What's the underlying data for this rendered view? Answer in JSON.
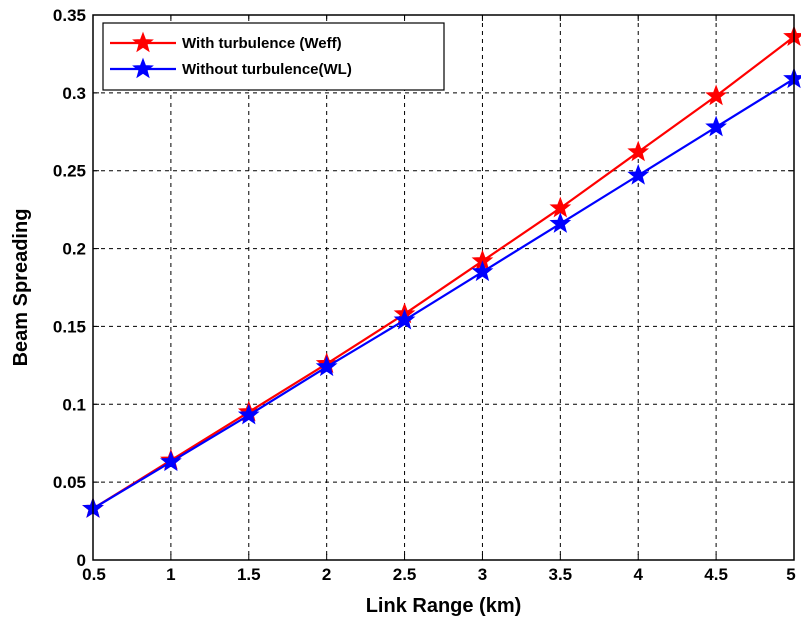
{
  "chart_data": {
    "type": "line",
    "title": "",
    "xlabel": "Link Range (km)",
    "ylabel": "Beam Spreading",
    "xlim": [
      0.5,
      5
    ],
    "ylim": [
      0,
      0.35
    ],
    "x": [
      0.5,
      1,
      1.5,
      2,
      2.5,
      3,
      3.5,
      4,
      4.5,
      5
    ],
    "xticks": [
      "0.5",
      "1",
      "1.5",
      "2",
      "2.5",
      "3",
      "3.5",
      "4",
      "4.5",
      "5"
    ],
    "yticks": [
      "0",
      "0.05",
      "0.1",
      "0.15",
      "0.2",
      "0.25",
      "0.3",
      "0.35"
    ],
    "yticks_values": [
      0,
      0.05,
      0.1,
      0.15,
      0.2,
      0.25,
      0.3,
      0.35
    ],
    "grid": true,
    "legend_position": "top-left",
    "series": [
      {
        "name": "With turbulence (Weff)",
        "color": "#ff0000",
        "marker": "star",
        "values": [
          0.033,
          0.064,
          0.095,
          0.126,
          0.158,
          0.192,
          0.226,
          0.262,
          0.298,
          0.336
        ]
      },
      {
        "name": "Without turbulence(WL)",
        "color": "#0000ff",
        "marker": "star",
        "values": [
          0.033,
          0.063,
          0.093,
          0.124,
          0.154,
          0.185,
          0.216,
          0.247,
          0.278,
          0.309
        ]
      }
    ]
  }
}
